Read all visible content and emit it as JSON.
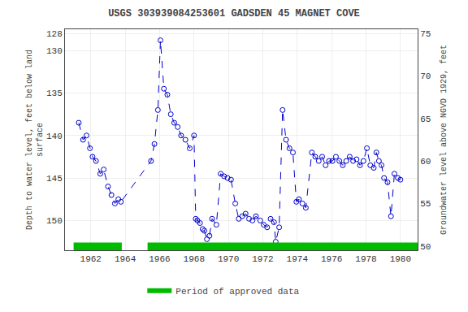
{
  "chart_data": {
    "type": "line",
    "title": "USGS 303939084253601 GADSDEN 45 MAGNET COVE",
    "ylabel": "Depth to water level, feet below land\nsurface",
    "y2label": "Groundwater level above NGVD 1929, feet",
    "x": [
      1961.3,
      1961.55,
      1961.75,
      1961.95,
      1962.1,
      1962.3,
      1962.55,
      1962.75,
      1963.0,
      1963.2,
      1963.4,
      1963.6,
      1963.75,
      1965.5,
      1965.7,
      1965.9,
      1966.05,
      1966.25,
      1966.45,
      1966.65,
      1966.85,
      1967.05,
      1967.25,
      1967.5,
      1967.75,
      1968.0,
      1968.1,
      1968.2,
      1968.35,
      1968.5,
      1968.6,
      1968.75,
      1968.9,
      1969.05,
      1969.3,
      1969.55,
      1969.75,
      1969.95,
      1970.15,
      1970.4,
      1970.6,
      1970.8,
      1971.0,
      1971.2,
      1971.4,
      1971.6,
      1971.85,
      1972.05,
      1972.25,
      1972.45,
      1972.65,
      1972.75,
      1972.95,
      1973.15,
      1973.35,
      1973.55,
      1973.75,
      1973.95,
      1974.1,
      1974.3,
      1974.5,
      1974.85,
      1975.05,
      1975.25,
      1975.45,
      1975.65,
      1975.85,
      1976.05,
      1976.25,
      1976.45,
      1976.65,
      1976.85,
      1977.05,
      1977.25,
      1977.45,
      1977.65,
      1977.85,
      1978.05,
      1978.25,
      1978.45,
      1978.6,
      1978.75,
      1978.9,
      1979.05,
      1979.25,
      1979.45,
      1979.65,
      1979.85,
      1980.0
    ],
    "values": [
      138.5,
      140.5,
      140.0,
      141.5,
      142.5,
      143.0,
      144.5,
      144.0,
      146.0,
      147.0,
      148.0,
      147.5,
      147.8,
      143.0,
      141.0,
      137.0,
      128.8,
      134.5,
      135.2,
      137.5,
      138.5,
      139.0,
      140.0,
      140.5,
      141.5,
      140.0,
      149.8,
      150.0,
      150.3,
      151.0,
      151.2,
      152.2,
      151.8,
      149.8,
      150.5,
      144.5,
      144.8,
      145.0,
      145.2,
      148.0,
      149.8,
      149.5,
      149.2,
      149.8,
      150.0,
      149.5,
      150.0,
      150.5,
      150.8,
      149.8,
      150.2,
      152.5,
      150.8,
      137.0,
      140.5,
      141.5,
      142.0,
      147.8,
      147.5,
      148.0,
      148.5,
      142.0,
      142.5,
      143.0,
      142.5,
      143.5,
      143.0,
      143.0,
      142.5,
      143.0,
      143.5,
      143.0,
      142.5,
      143.0,
      142.8,
      143.5,
      143.0,
      141.5,
      143.5,
      143.8,
      142.0,
      143.0,
      143.5,
      145.0,
      145.5,
      149.5,
      144.5,
      145.0,
      145.2
    ],
    "color": "#0000CC",
    "line_style": "dashed",
    "marker": "open circle",
    "xlim": [
      1960.5,
      1981.0
    ],
    "xticks": [
      1962,
      1964,
      1966,
      1968,
      1970,
      1972,
      1974,
      1976,
      1978,
      1980
    ],
    "ylim": [
      153.5,
      127.5
    ],
    "yticks": [
      128,
      130,
      135,
      140,
      145,
      150
    ],
    "y2lim": [
      49.5,
      75.5
    ],
    "y2ticks": [
      50,
      55,
      60,
      65,
      70,
      75
    ],
    "approved_periods": [
      [
        1961.0,
        1963.8
      ],
      [
        1965.3,
        1981.0
      ]
    ],
    "approved_label": "Period of approved data",
    "approved_color": "#00BB00",
    "grid": true,
    "legend": "bottom"
  }
}
